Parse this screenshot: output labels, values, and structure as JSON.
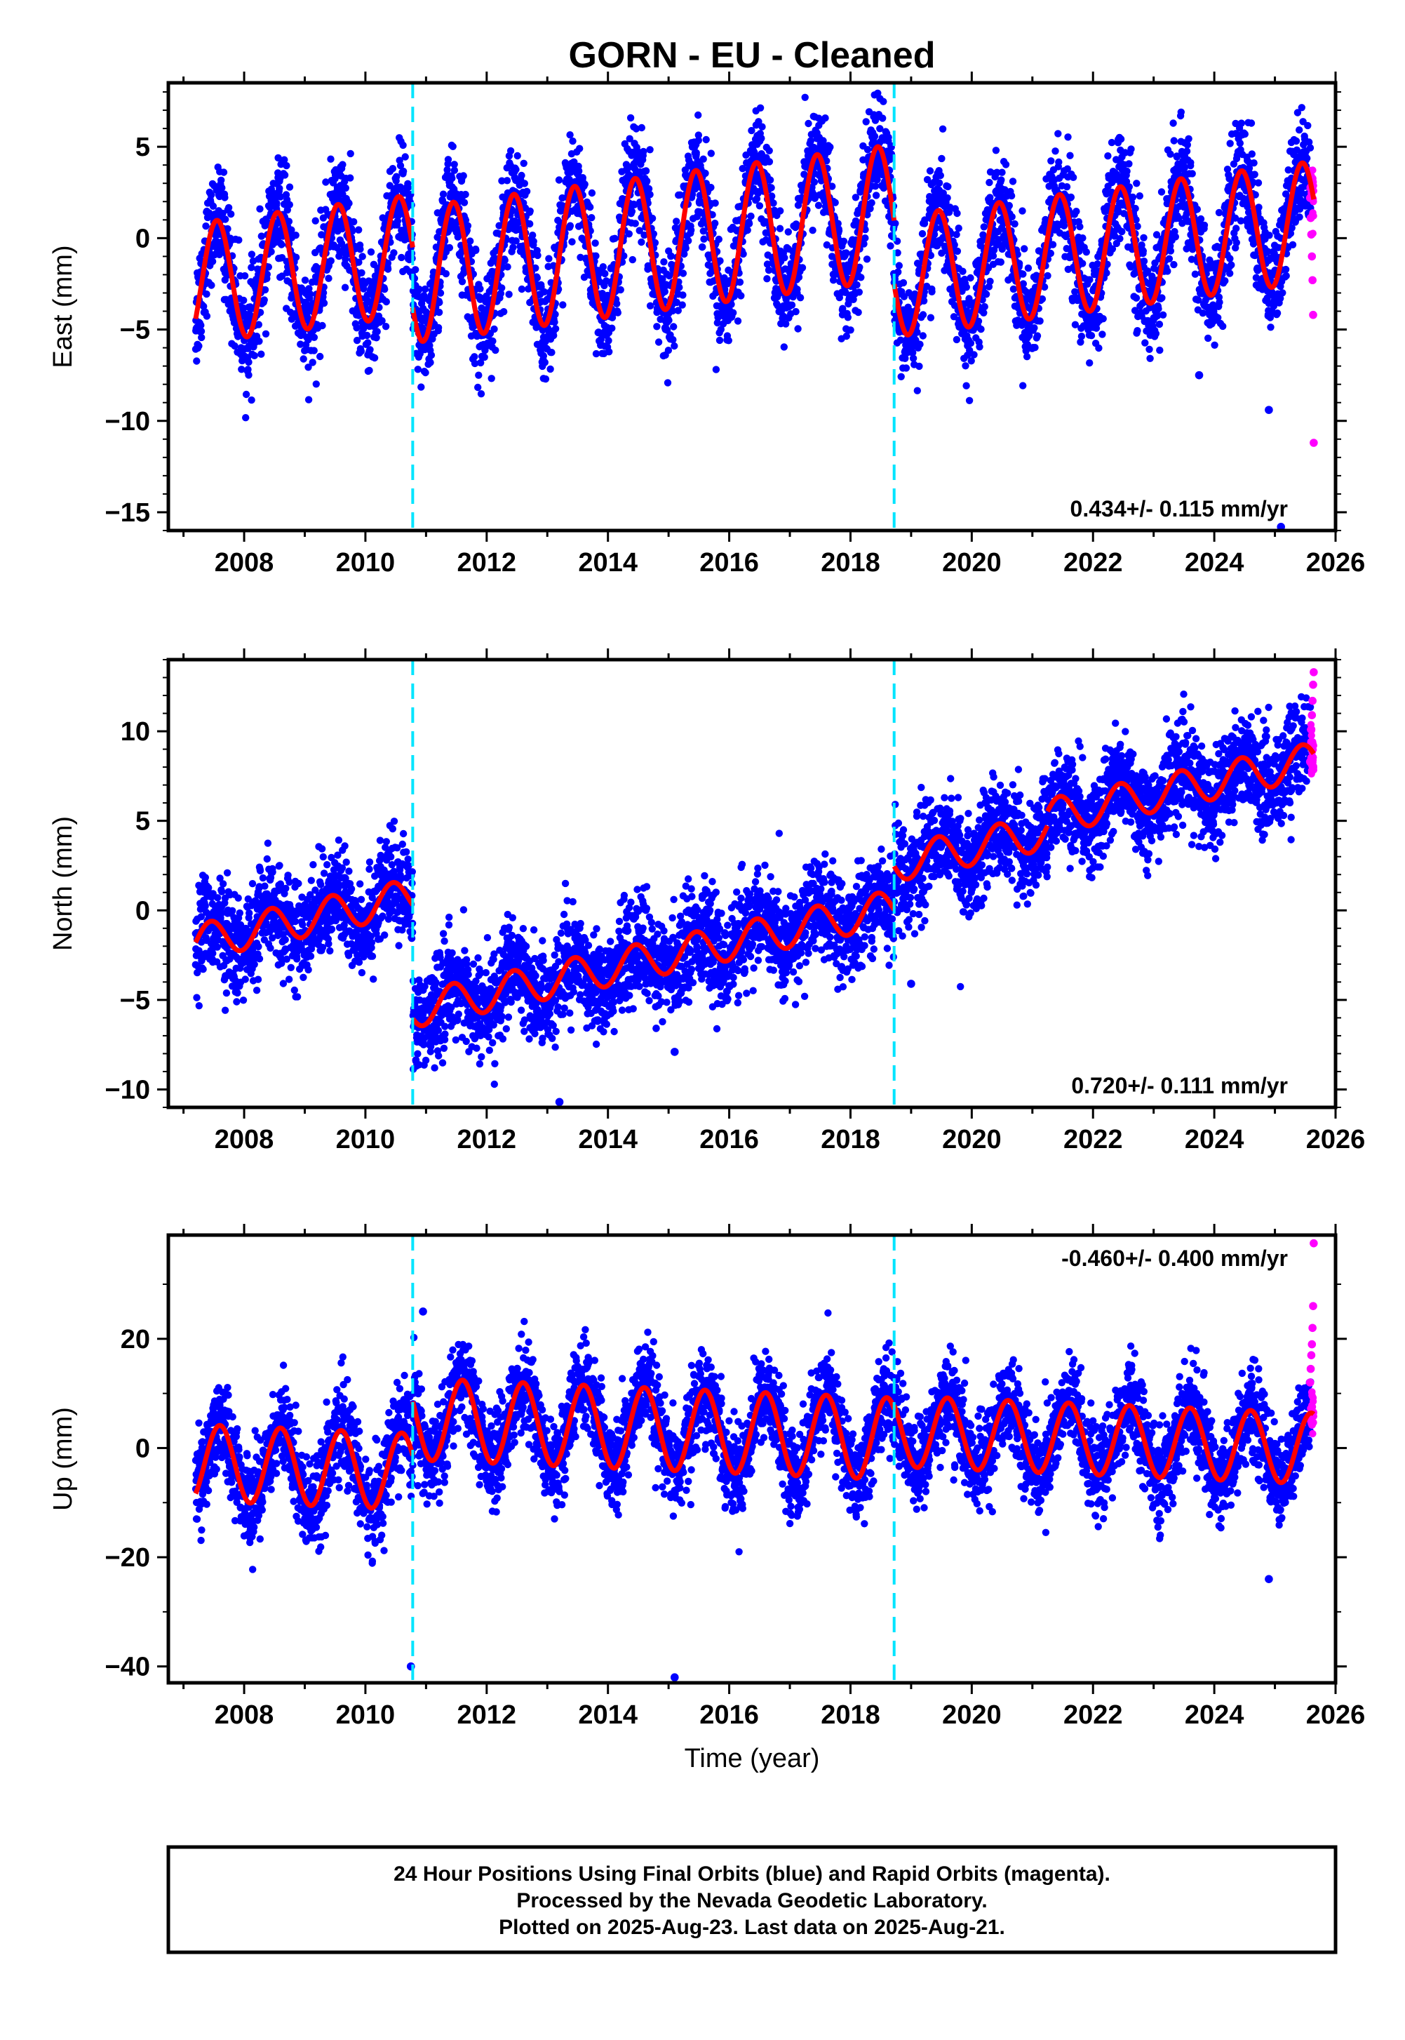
{
  "title": "GORN  - EU - Cleaned",
  "xlabel": "Time (year)",
  "footer": {
    "line1": "24 Hour Positions Using Final Orbits (blue) and Rapid Orbits (magenta).",
    "line2": "Processed by the Nevada Geodetic Laboratory.",
    "line3": "Plotted on 2025-Aug-23. Last data on 2025-Aug-21."
  },
  "colors": {
    "final_orbits": "#0000ff",
    "rapid_orbits": "#ff00ff",
    "model_fit": "#ff0000",
    "offsets": "#00e5ff"
  },
  "chart_data": [
    {
      "type": "scatter",
      "component": "east",
      "ylabel": "East (mm)",
      "xlim": [
        2006.75,
        2026.0
      ],
      "ylim": [
        -16.0,
        8.5
      ],
      "x_ticks": [
        "2008",
        "2010",
        "2012",
        "2014",
        "2016",
        "2018",
        "2020",
        "2022",
        "2024",
        "2026"
      ],
      "y_ticks": [
        "5",
        "0",
        "−5",
        "−10",
        "−15"
      ],
      "y_tick_values": [
        5,
        0,
        -5,
        -10,
        -15
      ],
      "rate_label": "0.434+/- 0.115 mm/yr",
      "offset_years": [
        2010.78,
        2018.72
      ],
      "data_span": [
        2007.2,
        2025.64
      ],
      "model": {
        "segments": [
          {
            "start": 2007.2,
            "end": 2010.78,
            "mean": -1.7,
            "trend": 0.434,
            "amplitude": 3.3,
            "peak_year_fraction": 0.55
          },
          {
            "start": 2010.78,
            "end": 2018.72,
            "mean": -0.3,
            "trend": 0.434,
            "amplitude": 3.7,
            "peak_year_fraction": 0.45
          },
          {
            "start": 2018.72,
            "end": 2025.64,
            "mean": -0.6,
            "trend": 0.434,
            "amplitude": 3.3,
            "peak_year_fraction": 0.45
          }
        ]
      },
      "scatter_noise_sd": 1.2,
      "rapid_points": {
        "x": [
          2025.58,
          2025.59,
          2025.6,
          2025.61,
          2025.62,
          2025.63,
          2025.64
        ],
        "y": [
          2.2,
          1.1,
          0.2,
          -1.0,
          -2.3,
          -4.2,
          -11.2
        ]
      },
      "outliers": {
        "x": [
          2024.9,
          2025.1,
          2023.75
        ],
        "y": [
          -9.4,
          -15.8,
          -7.5
        ]
      }
    },
    {
      "type": "scatter",
      "component": "north",
      "ylabel": "North (mm)",
      "xlim": [
        2006.75,
        2026.0
      ],
      "ylim": [
        -11.0,
        14.0
      ],
      "x_ticks": [
        "2008",
        "2010",
        "2012",
        "2014",
        "2016",
        "2018",
        "2020",
        "2022",
        "2024",
        "2026"
      ],
      "y_ticks": [
        "10",
        "5",
        "0",
        "−5",
        "−10"
      ],
      "y_tick_values": [
        10,
        5,
        0,
        -5,
        -10
      ],
      "rate_label": "0.720+/- 0.111 mm/yr",
      "offset_years": [
        2010.78,
        2018.72
      ],
      "data_span": [
        2007.2,
        2025.64
      ],
      "model": {
        "segments": [
          {
            "start": 2007.2,
            "end": 2010.78,
            "mean": -0.5,
            "trend": 0.72,
            "amplitude": 1.0,
            "peak_year_fraction": 0.45
          },
          {
            "start": 2010.78,
            "end": 2018.72,
            "mean": -2.7,
            "trend": 0.72,
            "amplitude": 1.0,
            "peak_year_fraction": 0.45
          },
          {
            "start": 2018.72,
            "end": 2021.25,
            "mean": 3.5,
            "trend": 0.72,
            "amplitude": 1.0,
            "peak_year_fraction": 0.45
          },
          {
            "start": 2021.25,
            "end": 2025.64,
            "mean": 6.8,
            "trend": 0.72,
            "amplitude": 1.0,
            "peak_year_fraction": 0.45
          }
        ]
      },
      "scatter_noise_sd": 1.1,
      "rapid_points": {
        "x": [
          2025.58,
          2025.59,
          2025.6,
          2025.61,
          2025.62,
          2025.63,
          2025.64
        ],
        "y": [
          8.3,
          9.2,
          10.1,
          10.9,
          11.7,
          12.6,
          13.3
        ]
      },
      "outliers": {
        "x": [
          2013.2,
          2015.1,
          2019.0
        ],
        "y": [
          -10.7,
          -7.9,
          -4.1
        ]
      }
    },
    {
      "type": "scatter",
      "component": "up",
      "ylabel": "Up (mm)",
      "xlim": [
        2006.75,
        2026.0
      ],
      "ylim": [
        -43.0,
        39.0
      ],
      "x_ticks": [
        "2008",
        "2010",
        "2012",
        "2014",
        "2016",
        "2018",
        "2020",
        "2022",
        "2024",
        "2026"
      ],
      "y_ticks": [
        "20",
        "0",
        "−20",
        "−40"
      ],
      "y_tick_values": [
        20,
        0,
        -20,
        -40
      ],
      "rate_label": "-0.460+/- 0.400 mm/yr",
      "offset_years": [
        2010.78,
        2018.72
      ],
      "data_span": [
        2007.2,
        2025.64
      ],
      "model": {
        "segments": [
          {
            "start": 2007.2,
            "end": 2010.78,
            "mean": -3.5,
            "trend": -0.46,
            "amplitude": 7.0,
            "peak_year_fraction": 0.6
          },
          {
            "start": 2010.78,
            "end": 2018.72,
            "mean": 3.5,
            "trend": -0.46,
            "amplitude": 7.5,
            "peak_year_fraction": 0.6
          },
          {
            "start": 2018.72,
            "end": 2025.64,
            "mean": 1.5,
            "trend": -0.46,
            "amplitude": 6.5,
            "peak_year_fraction": 0.6
          }
        ]
      },
      "scatter_noise_sd": 3.4,
      "rapid_points": {
        "x": [
          2025.58,
          2025.59,
          2025.6,
          2025.61,
          2025.62,
          2025.63,
          2025.64
        ],
        "y": [
          12.0,
          14.5,
          17.0,
          19.0,
          22.0,
          26.0,
          37.5
        ]
      },
      "outliers": {
        "x": [
          2010.75,
          2015.1,
          2024.9,
          2010.95
        ],
        "y": [
          -40.0,
          -42.0,
          -24.0,
          25.0
        ]
      }
    }
  ]
}
